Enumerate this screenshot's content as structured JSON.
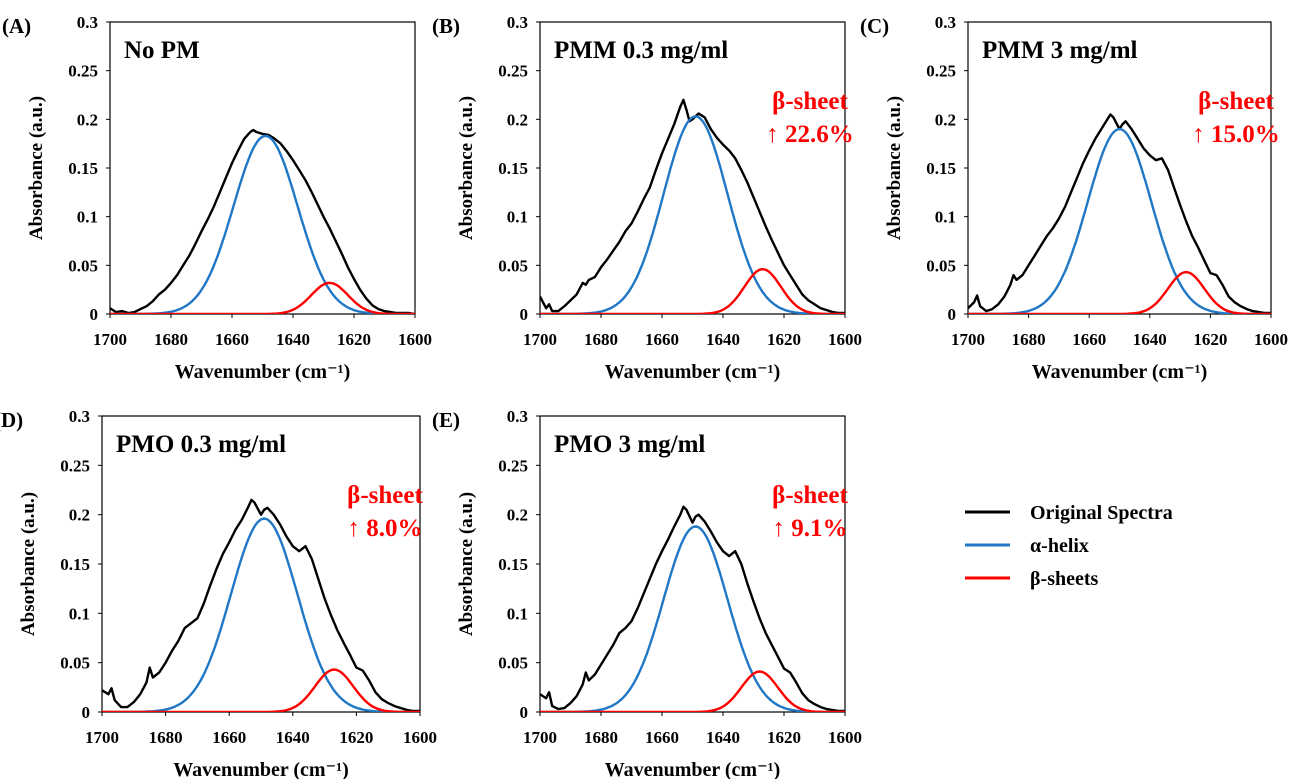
{
  "colors": {
    "original": "#000000",
    "helix": "#1f77c6",
    "sheet": "#ff0000",
    "annotation": "#ff0000"
  },
  "legend": {
    "items": [
      "Original Spectra",
      "α-helix",
      "β-sheets"
    ]
  },
  "chart_data": [
    {
      "type": "line",
      "panel": "(A)",
      "title": "No PM",
      "annotation": [],
      "xlabel": "Wavenumber (cm⁻¹)",
      "ylabel": "Absorbance (a.u.)",
      "xlim": [
        1700,
        1600
      ],
      "x_reversed": true,
      "ylim": [
        0,
        0.3
      ],
      "grid": false,
      "xticks": [
        1700,
        1680,
        1660,
        1640,
        1620,
        1600
      ],
      "yticks": [
        0,
        0.05,
        0.1,
        0.15,
        0.2,
        0.25,
        0.3
      ],
      "ytick_labels": [
        "0",
        "0.05",
        "0.1",
        "0.15",
        "0.2",
        "0.25",
        "0.3"
      ],
      "series": [
        {
          "name": "Original Spectra",
          "x": [
            1700,
            1698,
            1696,
            1694,
            1692,
            1690,
            1688,
            1686,
            1684,
            1682,
            1680,
            1678,
            1676,
            1674,
            1672,
            1670,
            1668,
            1666,
            1664,
            1662,
            1660,
            1658,
            1656,
            1654,
            1653,
            1652,
            1650,
            1648,
            1646,
            1644,
            1642,
            1640,
            1638,
            1636,
            1634,
            1632,
            1630,
            1628,
            1626,
            1624,
            1622,
            1620,
            1618,
            1616,
            1614,
            1612,
            1610,
            1608,
            1606,
            1604,
            1602,
            1600
          ],
          "y": [
            0.006,
            0.002,
            0.003,
            0.001,
            0.002,
            0.005,
            0.008,
            0.013,
            0.02,
            0.025,
            0.032,
            0.04,
            0.05,
            0.06,
            0.072,
            0.085,
            0.097,
            0.11,
            0.125,
            0.14,
            0.155,
            0.168,
            0.18,
            0.187,
            0.189,
            0.187,
            0.185,
            0.184,
            0.18,
            0.175,
            0.167,
            0.158,
            0.148,
            0.138,
            0.126,
            0.113,
            0.1,
            0.088,
            0.075,
            0.062,
            0.048,
            0.036,
            0.025,
            0.016,
            0.009,
            0.005,
            0.003,
            0.002,
            0.001,
            0.001,
            0.001,
            0.0
          ]
        },
        {
          "name": "α-helix",
          "center": 1649,
          "amplitude": 0.183,
          "sigma": 10.5
        },
        {
          "name": "β-sheets",
          "center": 1628,
          "amplitude": 0.032,
          "sigma": 6.0
        }
      ]
    },
    {
      "type": "line",
      "panel": "(B)",
      "title": "PMM 0.3 mg/ml",
      "annotation": [
        "β-sheet",
        "↑ 22.6%"
      ],
      "xlabel": "Wavenumber (cm⁻¹)",
      "ylabel": "Absorbance (a.u.)",
      "xlim": [
        1700,
        1600
      ],
      "x_reversed": true,
      "ylim": [
        0,
        0.3
      ],
      "grid": false,
      "xticks": [
        1700,
        1680,
        1660,
        1640,
        1620,
        1600
      ],
      "yticks": [
        0,
        0.05,
        0.1,
        0.15,
        0.2,
        0.25,
        0.3
      ],
      "ytick_labels": [
        "0",
        "0.05",
        "0.1",
        "0.15",
        "0.2",
        "0.25",
        "0.3"
      ],
      "series": [
        {
          "name": "Original Spectra",
          "x": [
            1700,
            1698,
            1697,
            1696,
            1694,
            1692,
            1690,
            1688,
            1686,
            1685,
            1684,
            1682,
            1680,
            1678,
            1676,
            1674,
            1672,
            1670,
            1668,
            1666,
            1664,
            1662,
            1660,
            1658,
            1656,
            1654,
            1653,
            1652,
            1651,
            1650,
            1648,
            1646,
            1644,
            1642,
            1640,
            1638,
            1636,
            1634,
            1632,
            1630,
            1628,
            1626,
            1624,
            1622,
            1620,
            1618,
            1616,
            1614,
            1612,
            1610,
            1608,
            1606,
            1604,
            1602,
            1600
          ],
          "y": [
            0.018,
            0.006,
            0.01,
            0.003,
            0.003,
            0.008,
            0.014,
            0.02,
            0.032,
            0.03,
            0.035,
            0.038,
            0.048,
            0.056,
            0.065,
            0.074,
            0.085,
            0.093,
            0.105,
            0.118,
            0.13,
            0.148,
            0.165,
            0.18,
            0.195,
            0.213,
            0.22,
            0.21,
            0.198,
            0.2,
            0.206,
            0.202,
            0.19,
            0.181,
            0.174,
            0.168,
            0.16,
            0.148,
            0.135,
            0.12,
            0.105,
            0.09,
            0.076,
            0.063,
            0.05,
            0.04,
            0.03,
            0.02,
            0.014,
            0.01,
            0.006,
            0.004,
            0.002,
            0.001,
            0.001
          ]
        },
        {
          "name": "α-helix",
          "center": 1649,
          "amplitude": 0.203,
          "sigma": 10.5
        },
        {
          "name": "β-sheets",
          "center": 1627,
          "amplitude": 0.046,
          "sigma": 6.0
        }
      ]
    },
    {
      "type": "line",
      "panel": "(C)",
      "title": "PMM 3 mg/ml",
      "annotation": [
        "β-sheet",
        "↑ 15.0%"
      ],
      "xlabel": "Wavenumber (cm⁻¹)",
      "ylabel": "Absorbance (a.u.)",
      "xlim": [
        1700,
        1600
      ],
      "x_reversed": true,
      "ylim": [
        0,
        0.3
      ],
      "grid": false,
      "xticks": [
        1700,
        1680,
        1660,
        1640,
        1620,
        1600
      ],
      "yticks": [
        0,
        0.05,
        0.1,
        0.15,
        0.2,
        0.25,
        0.3
      ],
      "ytick_labels": [
        "0",
        "0.05",
        "0.1",
        "0.15",
        "0.2",
        "0.25",
        "0.3"
      ],
      "series": [
        {
          "name": "Original Spectra",
          "x": [
            1700,
            1698,
            1697,
            1696,
            1694,
            1692,
            1690,
            1688,
            1686,
            1685,
            1684,
            1682,
            1680,
            1678,
            1676,
            1674,
            1672,
            1670,
            1668,
            1666,
            1664,
            1662,
            1660,
            1658,
            1656,
            1654,
            1653,
            1652,
            1650,
            1649,
            1648,
            1646,
            1644,
            1642,
            1640,
            1638,
            1636,
            1634,
            1632,
            1630,
            1628,
            1626,
            1624,
            1622,
            1620,
            1618,
            1616,
            1614,
            1612,
            1610,
            1608,
            1606,
            1604,
            1602,
            1600
          ],
          "y": [
            0.006,
            0.012,
            0.019,
            0.008,
            0.003,
            0.005,
            0.01,
            0.018,
            0.03,
            0.04,
            0.035,
            0.04,
            0.05,
            0.06,
            0.07,
            0.08,
            0.088,
            0.098,
            0.11,
            0.125,
            0.14,
            0.155,
            0.168,
            0.18,
            0.19,
            0.2,
            0.205,
            0.202,
            0.19,
            0.195,
            0.198,
            0.19,
            0.18,
            0.17,
            0.163,
            0.158,
            0.16,
            0.148,
            0.13,
            0.112,
            0.095,
            0.08,
            0.068,
            0.055,
            0.042,
            0.04,
            0.03,
            0.018,
            0.012,
            0.008,
            0.005,
            0.003,
            0.002,
            0.001,
            0.001
          ]
        },
        {
          "name": "α-helix",
          "center": 1650,
          "amplitude": 0.19,
          "sigma": 10.5
        },
        {
          "name": "β-sheets",
          "center": 1628,
          "amplitude": 0.043,
          "sigma": 6.0
        }
      ]
    },
    {
      "type": "line",
      "panel": "(D)",
      "title": "PMO 0.3 mg/ml",
      "annotation": [
        "β-sheet",
        "↑ 8.0%"
      ],
      "xlabel": "Wavenumber (cm⁻¹)",
      "ylabel": "Absorbance (a.u.)",
      "xlim": [
        1700,
        1600
      ],
      "x_reversed": true,
      "ylim": [
        0,
        0.3
      ],
      "grid": false,
      "xticks": [
        1700,
        1680,
        1660,
        1640,
        1620,
        1600
      ],
      "yticks": [
        0,
        0.05,
        0.1,
        0.15,
        0.2,
        0.25,
        0.3
      ],
      "ytick_labels": [
        "0",
        "0.05",
        "0.1",
        "0.15",
        "0.2",
        "0.25",
        "0.3"
      ],
      "series": [
        {
          "name": "Original Spectra",
          "x": [
            1700,
            1698,
            1697,
            1696,
            1694,
            1692,
            1690,
            1688,
            1686,
            1685,
            1684,
            1682,
            1680,
            1678,
            1676,
            1674,
            1672,
            1670,
            1668,
            1666,
            1664,
            1662,
            1660,
            1658,
            1656,
            1654,
            1653,
            1652,
            1650,
            1649,
            1648,
            1646,
            1644,
            1642,
            1640,
            1638,
            1636,
            1634,
            1632,
            1630,
            1628,
            1626,
            1624,
            1622,
            1620,
            1618,
            1616,
            1614,
            1612,
            1610,
            1608,
            1606,
            1604,
            1602,
            1600
          ],
          "y": [
            0.022,
            0.018,
            0.024,
            0.012,
            0.005,
            0.005,
            0.01,
            0.018,
            0.03,
            0.045,
            0.035,
            0.04,
            0.05,
            0.062,
            0.072,
            0.085,
            0.09,
            0.095,
            0.11,
            0.128,
            0.145,
            0.16,
            0.172,
            0.185,
            0.195,
            0.208,
            0.215,
            0.212,
            0.2,
            0.205,
            0.207,
            0.2,
            0.19,
            0.178,
            0.168,
            0.163,
            0.168,
            0.155,
            0.135,
            0.115,
            0.098,
            0.083,
            0.07,
            0.058,
            0.045,
            0.042,
            0.032,
            0.02,
            0.013,
            0.009,
            0.006,
            0.004,
            0.002,
            0.001,
            0.001
          ]
        },
        {
          "name": "α-helix",
          "center": 1649,
          "amplitude": 0.196,
          "sigma": 10.5
        },
        {
          "name": "β-sheets",
          "center": 1627,
          "amplitude": 0.043,
          "sigma": 6.0
        }
      ]
    },
    {
      "type": "line",
      "panel": "(E)",
      "title": "PMO 3 mg/ml",
      "annotation": [
        "β-sheet",
        "↑ 9.1%"
      ],
      "xlabel": "Wavenumber (cm⁻¹)",
      "ylabel": "Absorbance (a.u.)",
      "xlim": [
        1700,
        1600
      ],
      "x_reversed": true,
      "ylim": [
        0,
        0.3
      ],
      "grid": false,
      "xticks": [
        1700,
        1680,
        1660,
        1640,
        1620,
        1600
      ],
      "yticks": [
        0,
        0.05,
        0.1,
        0.15,
        0.2,
        0.25,
        0.3
      ],
      "ytick_labels": [
        "0",
        "0.05",
        "0.1",
        "0.15",
        "0.2",
        "0.25",
        "0.3"
      ],
      "series": [
        {
          "name": "Original Spectra",
          "x": [
            1700,
            1698,
            1697,
            1696,
            1694,
            1692,
            1690,
            1688,
            1686,
            1685,
            1684,
            1682,
            1680,
            1678,
            1676,
            1674,
            1672,
            1670,
            1668,
            1666,
            1664,
            1662,
            1660,
            1658,
            1656,
            1654,
            1653,
            1652,
            1650,
            1649,
            1648,
            1646,
            1644,
            1642,
            1640,
            1638,
            1636,
            1634,
            1632,
            1630,
            1628,
            1626,
            1624,
            1622,
            1620,
            1618,
            1616,
            1614,
            1612,
            1610,
            1608,
            1606,
            1604,
            1602,
            1600
          ],
          "y": [
            0.018,
            0.014,
            0.02,
            0.006,
            0.003,
            0.004,
            0.009,
            0.016,
            0.028,
            0.04,
            0.032,
            0.038,
            0.048,
            0.058,
            0.068,
            0.08,
            0.085,
            0.092,
            0.105,
            0.12,
            0.135,
            0.15,
            0.163,
            0.175,
            0.188,
            0.2,
            0.208,
            0.205,
            0.192,
            0.198,
            0.2,
            0.193,
            0.183,
            0.172,
            0.163,
            0.158,
            0.163,
            0.15,
            0.13,
            0.112,
            0.095,
            0.08,
            0.068,
            0.056,
            0.044,
            0.04,
            0.03,
            0.019,
            0.012,
            0.008,
            0.005,
            0.003,
            0.002,
            0.001,
            0.001
          ]
        },
        {
          "name": "α-helix",
          "center": 1649,
          "amplitude": 0.188,
          "sigma": 10.5
        },
        {
          "name": "β-sheets",
          "center": 1628,
          "amplitude": 0.041,
          "sigma": 6.0
        }
      ]
    }
  ]
}
